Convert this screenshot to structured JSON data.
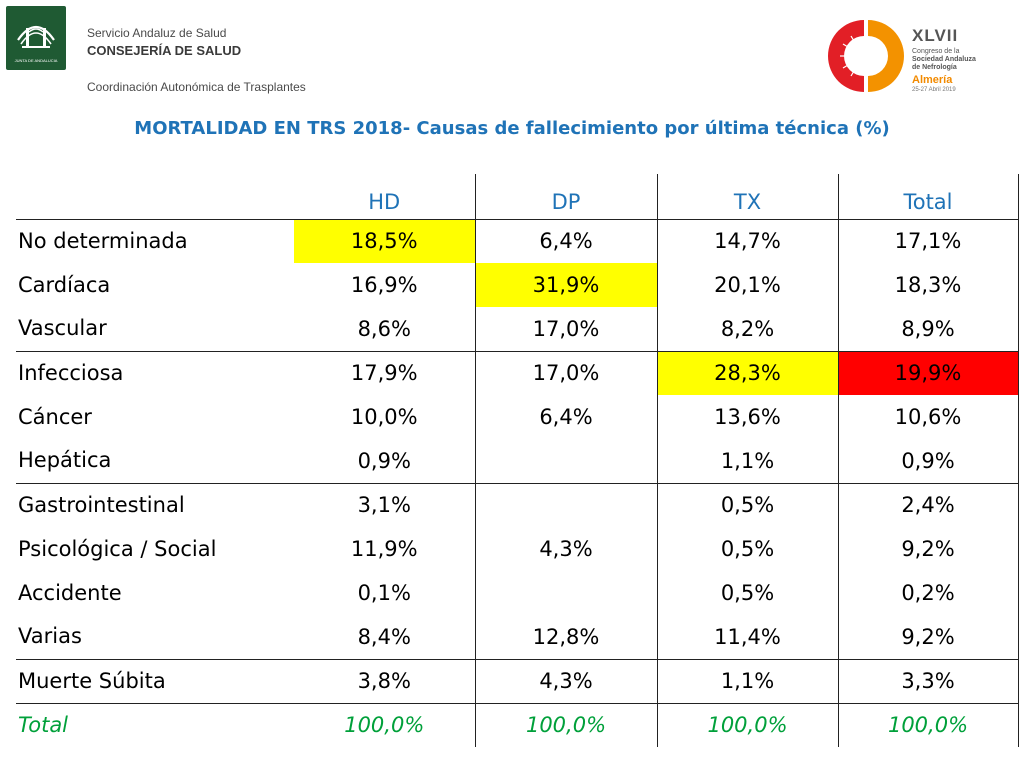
{
  "header": {
    "junta_logo_text": "JUNTA DE ANDALUCIA",
    "org_line1": "Servicio Andaluz de Salud",
    "org_line2": "CONSEJERÍA DE SALUD",
    "org_line3": "Coordinación Autonómica de Trasplantes",
    "congress_roman": "XLVII",
    "congress_line1": "Congreso de la",
    "congress_line2": "Sociedad Andaluza",
    "congress_line3": "de Nefrología",
    "congress_city": "Almería",
    "congress_dates": "25-27 Abril 2019"
  },
  "title": "MORTALIDAD EN TRS 2018- Causas de fallecimiento por última técnica (%)",
  "colors": {
    "title_blue": "#1f73b7",
    "total_green": "#00a03a",
    "highlight_yellow": "#ffff00",
    "highlight_red": "#ff0000"
  },
  "table": {
    "headers": [
      "",
      "HD",
      "DP",
      "TX",
      "Total"
    ],
    "rows": [
      {
        "label": "No determinada",
        "values": [
          "18,5%",
          "6,4%",
          "14,7%",
          "17,1%"
        ],
        "highlight": [
          "yellow",
          "",
          "",
          ""
        ]
      },
      {
        "label": "Cardíaca",
        "values": [
          "16,9%",
          "31,9%",
          "20,1%",
          "18,3%"
        ],
        "highlight": [
          "",
          "yellow",
          "",
          ""
        ]
      },
      {
        "label": "Vascular",
        "values": [
          "8,6%",
          "17,0%",
          "8,2%",
          "8,9%"
        ],
        "highlight": [
          "",
          "",
          "",
          ""
        ]
      },
      {
        "label": "Infecciosa",
        "values": [
          "17,9%",
          "17,0%",
          "28,3%",
          "19,9%"
        ],
        "highlight": [
          "",
          "",
          "yellow",
          "red"
        ]
      },
      {
        "label": "Cáncer",
        "values": [
          "10,0%",
          "6,4%",
          "13,6%",
          "10,6%"
        ],
        "highlight": [
          "",
          "",
          "",
          ""
        ]
      },
      {
        "label": "Hepática",
        "values": [
          "0,9%",
          "",
          "1,1%",
          "0,9%"
        ],
        "highlight": [
          "",
          "",
          "",
          ""
        ]
      },
      {
        "label": "Gastrointestinal",
        "values": [
          "3,1%",
          "",
          "0,5%",
          "2,4%"
        ],
        "highlight": [
          "",
          "",
          "",
          ""
        ]
      },
      {
        "label": "Psicológica / Social",
        "values": [
          "11,9%",
          "4,3%",
          "0,5%",
          "9,2%"
        ],
        "highlight": [
          "",
          "",
          "",
          ""
        ]
      },
      {
        "label": "Accidente",
        "values": [
          "0,1%",
          "",
          "0,5%",
          "0,2%"
        ],
        "highlight": [
          "",
          "",
          "",
          ""
        ]
      },
      {
        "label": "Varias",
        "values": [
          "8,4%",
          "12,8%",
          "11,4%",
          "9,2%"
        ],
        "highlight": [
          "",
          "",
          "",
          ""
        ]
      },
      {
        "label": "Muerte Súbita",
        "values": [
          "3,8%",
          "4,3%",
          "1,1%",
          "3,3%"
        ],
        "highlight": [
          "",
          "",
          "",
          ""
        ]
      }
    ],
    "total_row": {
      "label": "Total",
      "values": [
        "100,0%",
        "100,0%",
        "100,0%",
        "100,0%"
      ]
    }
  }
}
